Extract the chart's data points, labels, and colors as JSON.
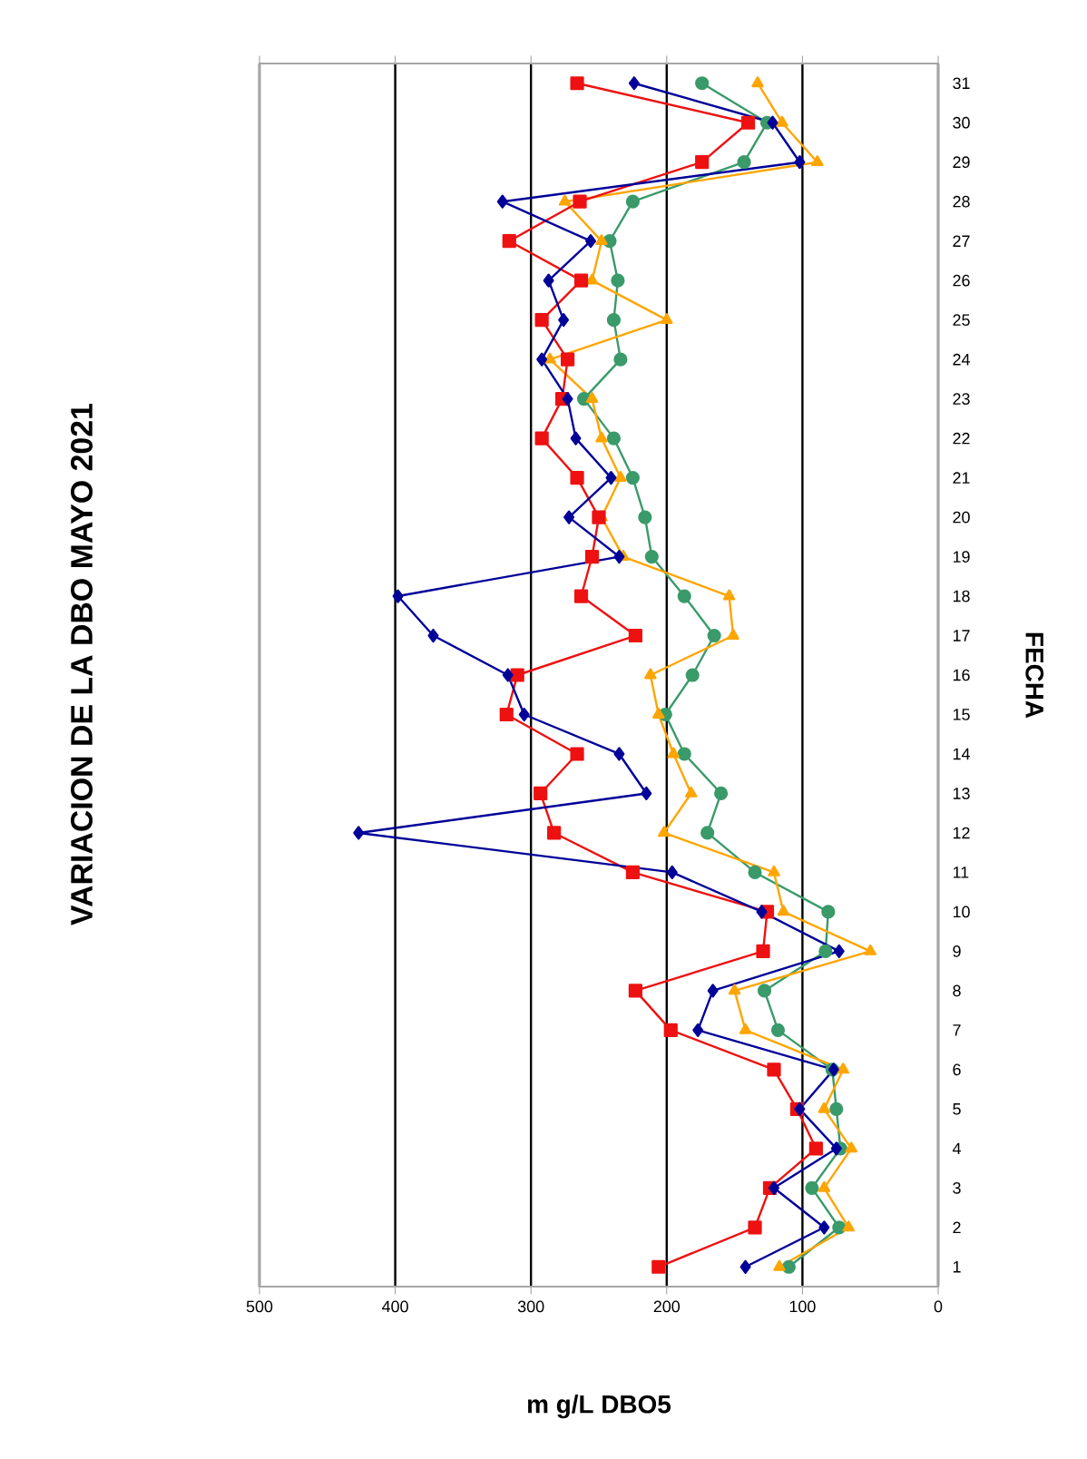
{
  "chart_data": {
    "type": "line",
    "orientation": "horizontal",
    "title": "VARIACION DE LA DBO MAYO 2021",
    "xlabel": "m g/L DBO5",
    "ylabel": "FECHA",
    "categories": [
      "31",
      "30",
      "29",
      "28",
      "27",
      "26",
      "25",
      "24",
      "23",
      "22",
      "21",
      "20",
      "19",
      "18",
      "17",
      "16",
      "15",
      "14",
      "13",
      "12",
      "11",
      "10",
      "9",
      "8",
      "7",
      "6",
      "5",
      "4",
      "3",
      "2",
      "1"
    ],
    "series": [
      {
        "color": "#000099",
        "marker": "diamond",
        "values": [
          224,
          122,
          102,
          321,
          256,
          287,
          276,
          292,
          273,
          267,
          241,
          272,
          235,
          398,
          372,
          317,
          305,
          235,
          215,
          427,
          196,
          130,
          73,
          166,
          177,
          77,
          102,
          75,
          121,
          84,
          142
        ]
      },
      {
        "color": "#ee1111",
        "marker": "square",
        "values": [
          266,
          140,
          174,
          264,
          316,
          263,
          292,
          273,
          277,
          292,
          266,
          250,
          255,
          263,
          223,
          310,
          318,
          266,
          293,
          283,
          225,
          126,
          129,
          223,
          197,
          121,
          104,
          90,
          124,
          135,
          206
        ]
      },
      {
        "color": "#ffa500",
        "marker": "triangle",
        "values": [
          133,
          115,
          89,
          275,
          248,
          255,
          200,
          286,
          255,
          248,
          234,
          248,
          232,
          154,
          151,
          212,
          206,
          195,
          182,
          202,
          121,
          114,
          50,
          150,
          142,
          70,
          84,
          64,
          84,
          66,
          117
        ]
      },
      {
        "color": "#3a9a6a",
        "marker": "circle",
        "values": [
          174,
          126,
          143,
          225,
          242,
          236,
          239,
          234,
          261,
          239,
          225,
          216,
          211,
          187,
          165,
          181,
          201,
          187,
          160,
          170,
          135,
          81,
          83,
          128,
          118,
          78,
          75,
          72,
          93,
          73,
          110
        ]
      }
    ],
    "xlim": [
      500,
      0
    ],
    "xticks": [
      0,
      100,
      200,
      300,
      400,
      500
    ],
    "grid": "x"
  }
}
